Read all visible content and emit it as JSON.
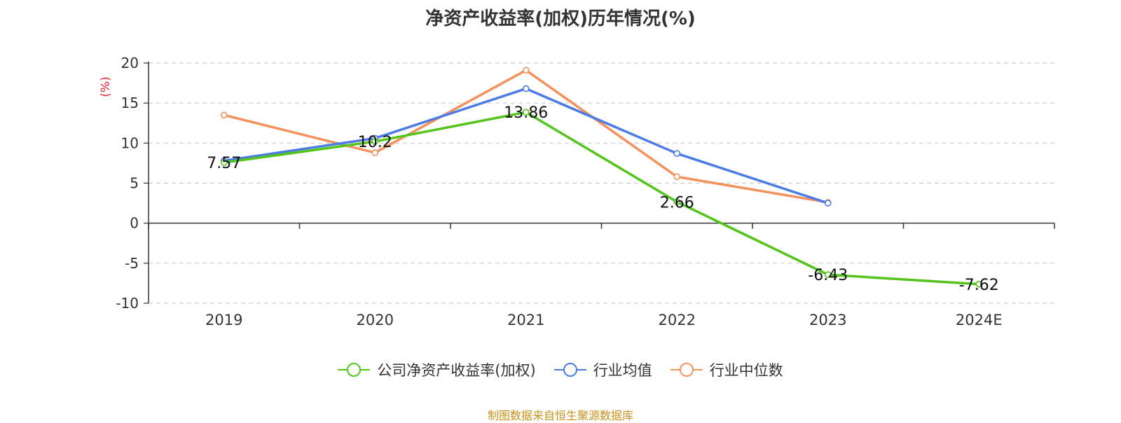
{
  "title": "净资产收益率(加权)历年情况(%)",
  "source_text": "制图数据来自恒生聚源数据库",
  "colors": {
    "company": "#52c41a",
    "industry_avg": "#4b7be5",
    "industry_median": "#f5915c",
    "source": "#c9921a",
    "ylabel": "#e8262a"
  },
  "chart_data": {
    "type": "line",
    "title": "净资产收益率(加权)历年情况(%)",
    "ylabel": "(%)",
    "xlabel": "",
    "categories": [
      "2019",
      "2020",
      "2021",
      "2022",
      "2023",
      "2024E"
    ],
    "ylim": [
      -10,
      20
    ],
    "yticks": [
      "-10",
      "-5",
      "0",
      "5",
      "10",
      "15",
      "20"
    ],
    "grid": true,
    "legend_position": "bottom",
    "series": [
      {
        "name": "公司净资产收益率(加权)",
        "color": "#52c41a",
        "values": [
          7.57,
          10.2,
          13.86,
          2.66,
          -6.43,
          -7.62
        ],
        "labels": [
          "7.57",
          "10.2",
          "13.86",
          "2.66",
          "-6.43",
          "-7.62"
        ]
      },
      {
        "name": "行业均值",
        "color": "#4b7be5",
        "values": [
          7.8,
          10.6,
          16.8,
          8.7,
          2.5,
          null
        ]
      },
      {
        "name": "行业中位数",
        "color": "#f5915c",
        "values": [
          13.5,
          8.8,
          19.1,
          5.8,
          2.6,
          null
        ]
      }
    ]
  }
}
